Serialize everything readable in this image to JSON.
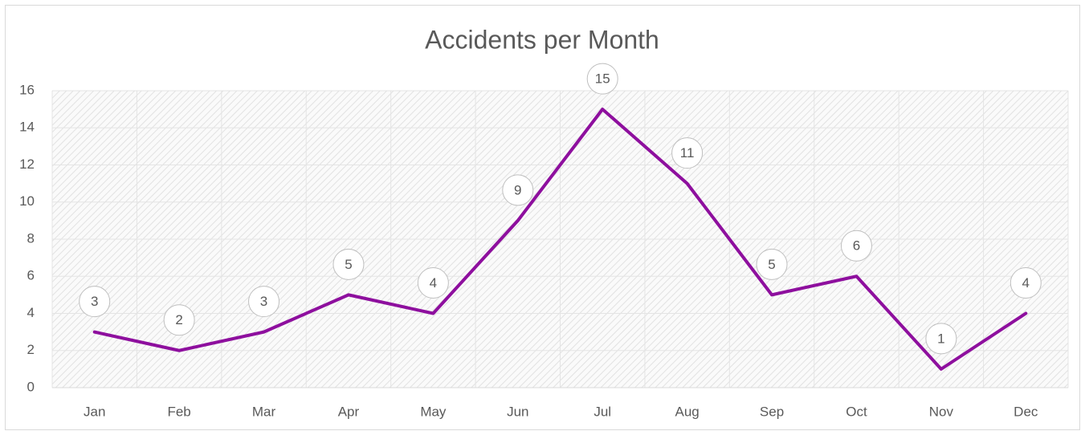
{
  "chart_data": {
    "type": "line",
    "title": "Accidents per Month",
    "categories": [
      "Jan",
      "Feb",
      "Mar",
      "Apr",
      "May",
      "Jun",
      "Jul",
      "Aug",
      "Sep",
      "Oct",
      "Nov",
      "Dec"
    ],
    "values": [
      3,
      2,
      3,
      5,
      4,
      9,
      15,
      11,
      5,
      6,
      1,
      4
    ],
    "color": "#8e0f9e",
    "ylim": [
      0,
      16
    ],
    "yticks": [
      0,
      2,
      4,
      6,
      8,
      10,
      12,
      14,
      16
    ],
    "grid": true
  }
}
